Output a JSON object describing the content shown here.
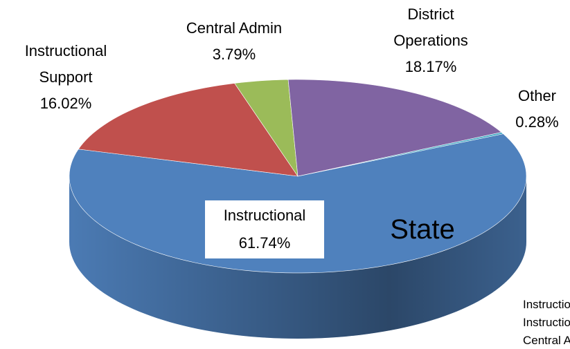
{
  "chart_data": {
    "type": "pie",
    "categories": [
      "Instructional",
      "Instructional Support",
      "Central Admin",
      "District Operations",
      "Other"
    ],
    "values": [
      61.74,
      16.02,
      3.79,
      18.17,
      0.28
    ],
    "value_labels": [
      "61.74%",
      "16.02%",
      "3.79%",
      "18.17%",
      "0.28%"
    ],
    "colors": [
      "#4f81bd",
      "#c0504d",
      "#9bbb59",
      "#8064a2",
      "#4bacc6"
    ],
    "annotation": "State",
    "legend": true
  }
}
